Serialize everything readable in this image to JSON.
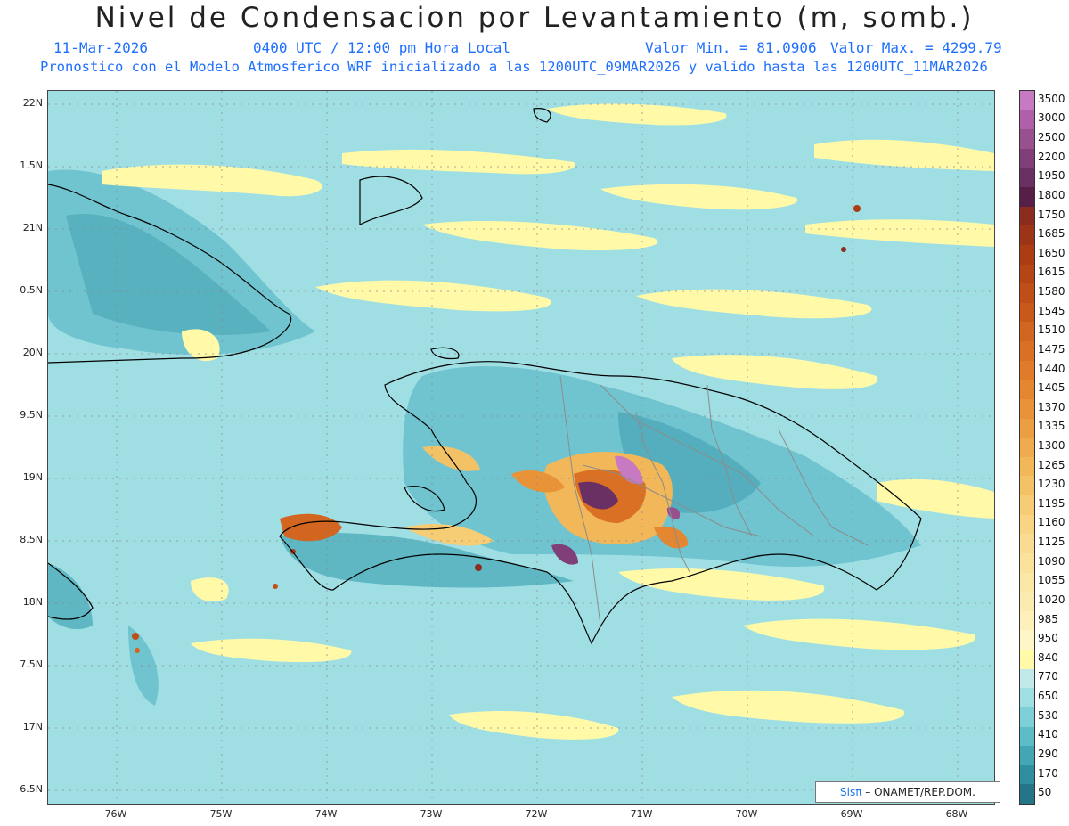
{
  "title": "Nivel de Condensacion por Levantamiento (m, somb.)",
  "date": "11-Mar-2026",
  "time": "0400 UTC / 12:00 pm Hora Local",
  "vmin": "Valor Min. = 81.0906",
  "vmax": "Valor Max. = 4299.79",
  "subtitle": "Pronostico con el Modelo Atmosferico WRF inicializado a las 1200UTC_09MAR2026 y valido hasta las  1200UTC_11MAR2026",
  "lat_labels": [
    "22N",
    "1.5N",
    "21N",
    "0.5N",
    "20N",
    "9.5N",
    "19N",
    "8.5N",
    "18N",
    "7.5N",
    "17N",
    "6.5N"
  ],
  "lon_labels": [
    "76W",
    "75W",
    "74W",
    "73W",
    "72W",
    "71W",
    "70W",
    "69W",
    "68W"
  ],
  "colorbar": {
    "labels": [
      "3500",
      "3000",
      "2500",
      "2200",
      "1950",
      "1800",
      "1750",
      "1685",
      "1650",
      "1615",
      "1580",
      "1545",
      "1510",
      "1475",
      "1440",
      "1405",
      "1370",
      "1335",
      "1300",
      "1265",
      "1230",
      "1195",
      "1160",
      "1125",
      "1090",
      "1055",
      "1020",
      "985",
      "950",
      "840",
      "770",
      "650",
      "530",
      "410",
      "290",
      "170",
      "50"
    ],
    "colors": [
      "#c779c1",
      "#b060a8",
      "#98508f",
      "#803f79",
      "#6a2f63",
      "#571e47",
      "#8a2c1e",
      "#9c3518",
      "#ab3c14",
      "#b64515",
      "#c04e18",
      "#c9591b",
      "#d2651f",
      "#da7024",
      "#e07b2a",
      "#e58730",
      "#e99338",
      "#ec9f42",
      "#efab4d",
      "#f1b759",
      "#f4c266",
      "#f6cc75",
      "#f8d483",
      "#f9dc91",
      "#fae29c",
      "#fbe7a6",
      "#fcebb0",
      "#fdf0bb",
      "#fef6c6",
      "#fff9a8",
      "#c2e9ea",
      "#9fdfe4",
      "#7dd0d8",
      "#5cbcc7",
      "#42a6b5",
      "#2f8fa0",
      "#247588"
    ]
  },
  "credit": {
    "brand": "Sisπ",
    "rest": " –  ONAMET/REP.DOM."
  }
}
